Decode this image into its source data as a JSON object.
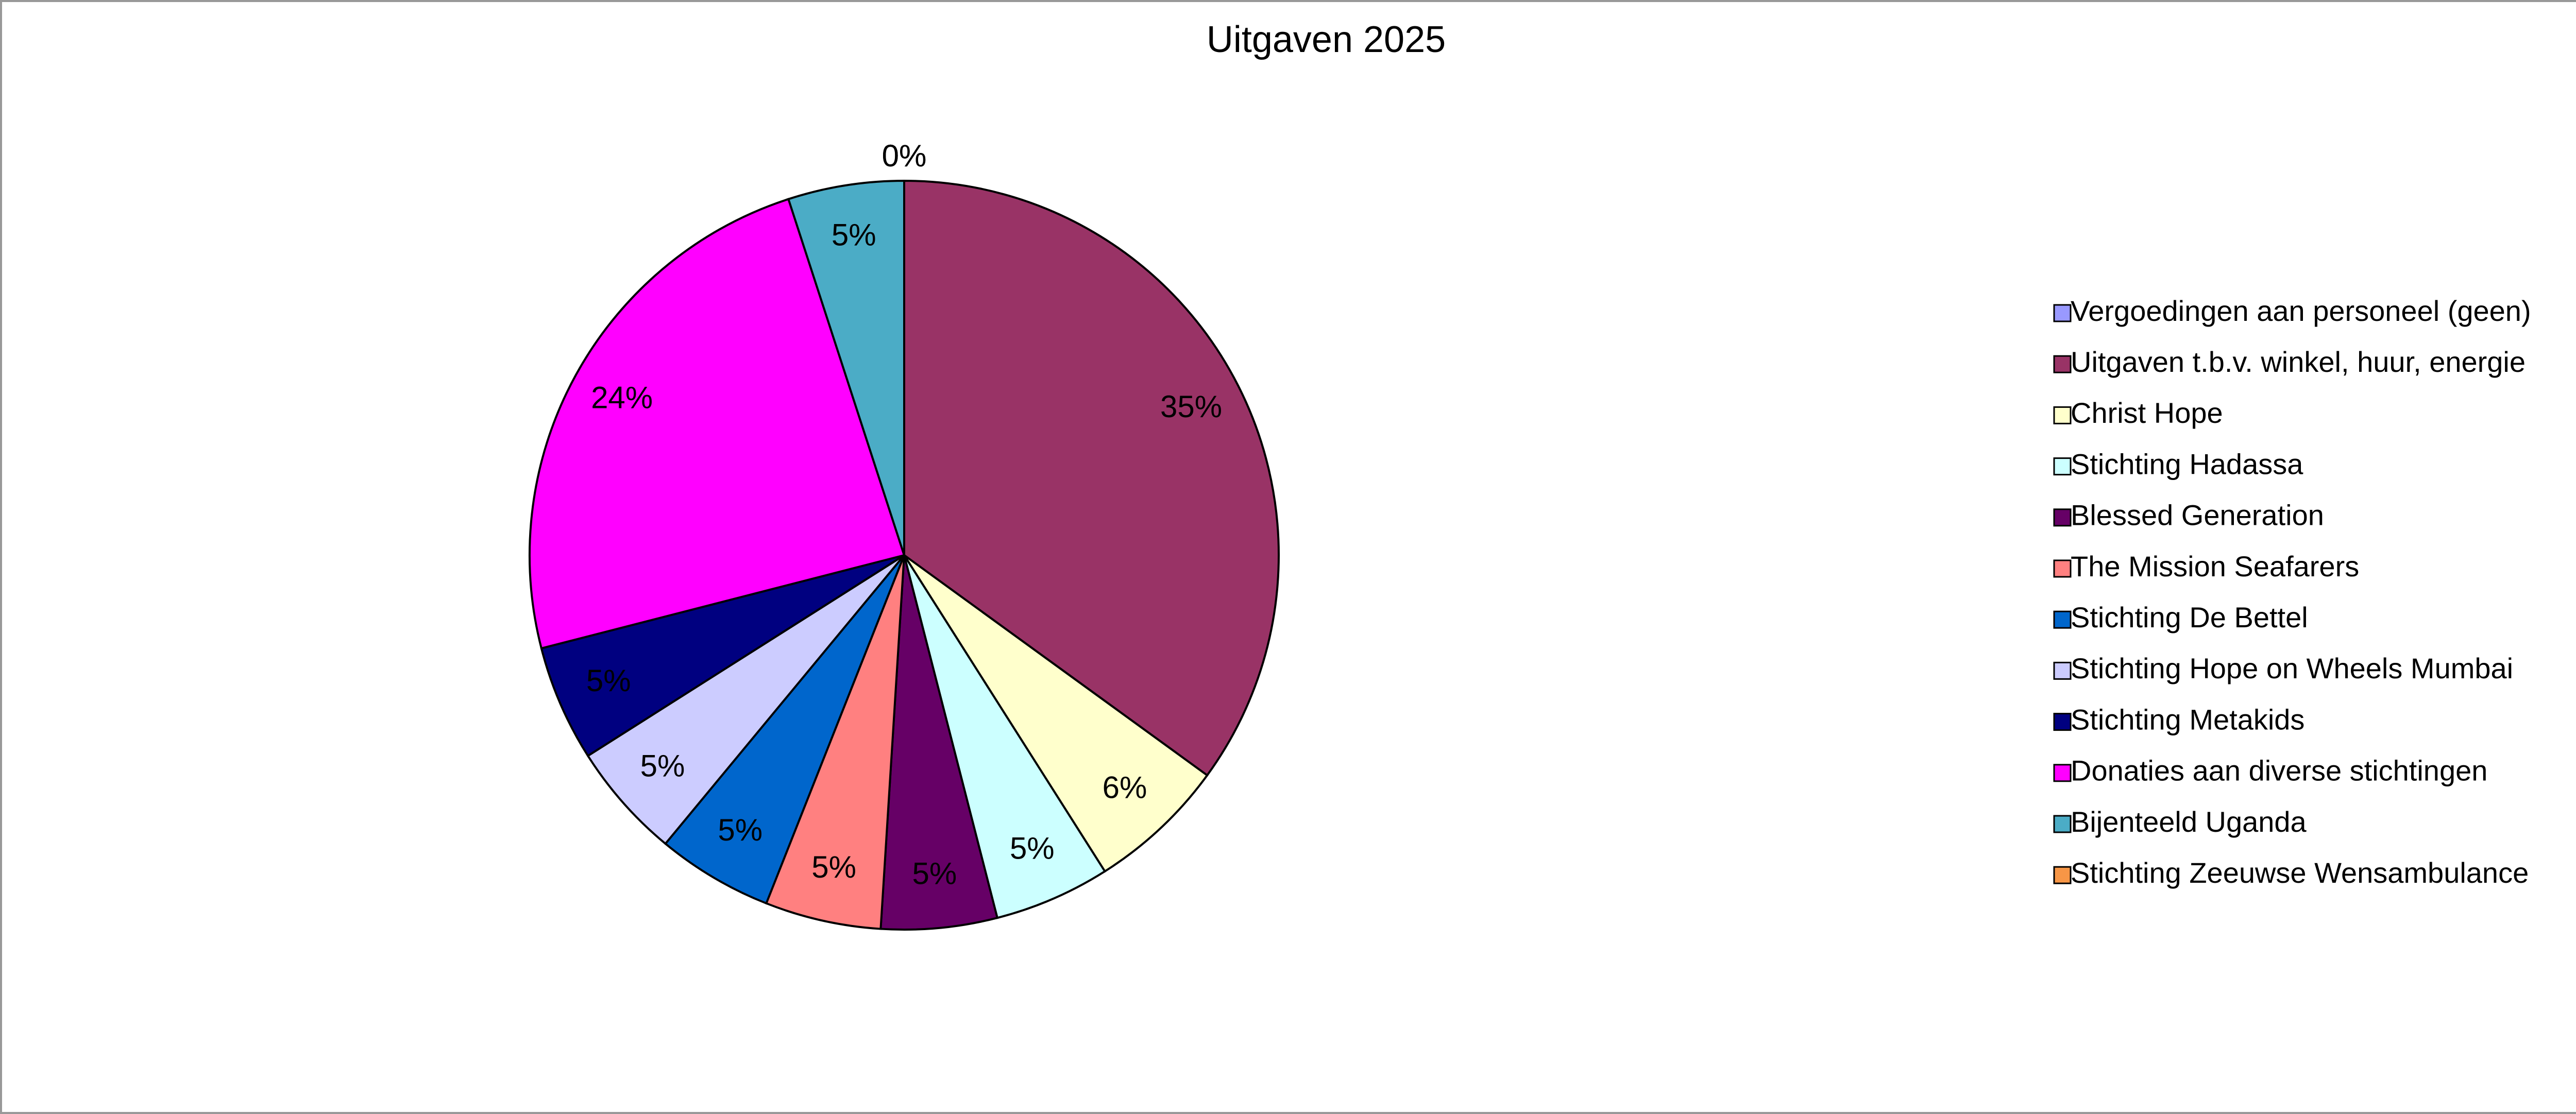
{
  "chart_data": {
    "type": "pie",
    "title": "Uitgaven 2025",
    "categories": [
      "Vergoedingen aan personeel (geen)",
      "Uitgaven t.b.v. winkel, huur, energie",
      "Christ Hope",
      "Stichting Hadassa",
      "Blessed Generation",
      "The Mission Seafarers",
      "Stichting De Bettel",
      "Stichting Hope on Wheels Mumbai",
      "Stichting Metakids",
      "Donaties aan diverse  stichtingen",
      "Bijenteeld Uganda",
      "Stichting Zeeuwse Wensambulance"
    ],
    "values": [
      0,
      35,
      6,
      5,
      5,
      5,
      5,
      5,
      5,
      24,
      5,
      0
    ],
    "value_labels": [
      "0%",
      "35%",
      "6%",
      "5%",
      "5%",
      "5%",
      "5%",
      "5%",
      "5%",
      "24%",
      "5%",
      "0%"
    ],
    "colors": [
      "#9999ff",
      "#993366",
      "#ffffcc",
      "#ccffff",
      "#660066",
      "#ff8080",
      "#0066cc",
      "#ccccff",
      "#000080",
      "#ff00ff",
      "#4bacc6",
      "#f79646"
    ],
    "legend": "right"
  }
}
